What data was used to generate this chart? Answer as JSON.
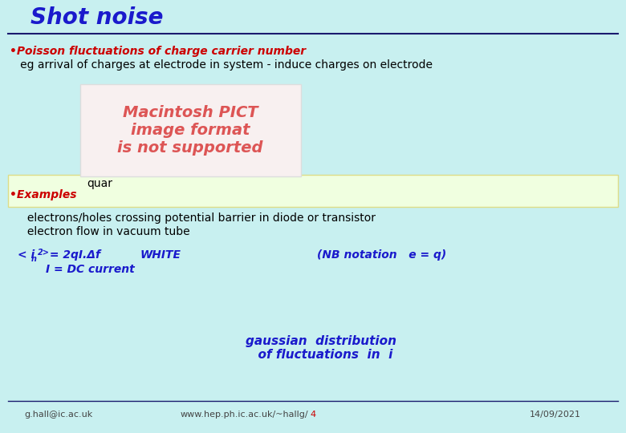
{
  "title": "Shot noise",
  "title_color": "#1a1acc",
  "background_color": "#c8f0f0",
  "line_color": "#1a1a6e",
  "bullet1_text": "•Poisson fluctuations of charge carrier number",
  "bullet1_color": "#cc0000",
  "bullet1_sub": "   eg arrival of charges at electrode in system - induce charges on electrode",
  "bullet1_sub_color": "#000000",
  "pict_box_text": "Macintosh PICT\nimage format\nis not supported",
  "pict_box_text_color": "#dd5555",
  "pict_box_bg": "#f8f0f0",
  "pict_box_border": "#dddddd",
  "quant_label": "quar",
  "quant_label_color": "#000000",
  "highlight_box_color": "#f0ffe0",
  "highlight_box_border": "#dddd88",
  "bullet2_text": "•Examples",
  "bullet2_color": "#cc0000",
  "example1": "     electrons/holes crossing potential barrier in diode or transistor",
  "example2": "     electron flow in vacuum tube",
  "example_color": "#000000",
  "formula_color": "#1a1acc",
  "gaussian_text": "gaussian  distribution\n  of fluctuations  in  i",
  "gaussian_color": "#1a1acc",
  "footer_left": "g.hall@ic.ac.uk",
  "footer_mid": "www.hep.ph.ic.ac.uk/~hallg/",
  "footer_num": "4",
  "footer_right": "14/09/2021",
  "footer_color": "#444444",
  "footer_num_color": "#cc0000",
  "footer_line_color": "#1a1a6e"
}
